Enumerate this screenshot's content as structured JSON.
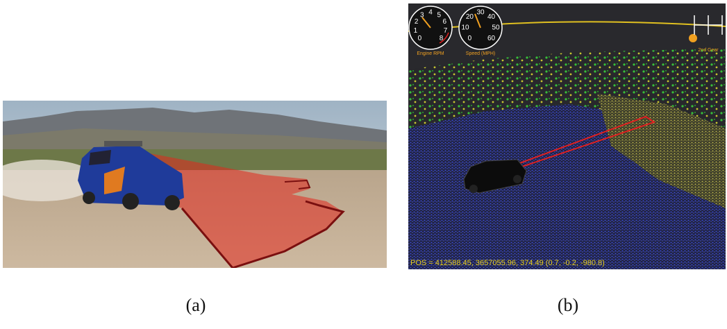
{
  "figure": {
    "panels": [
      {
        "label": "(a)"
      },
      {
        "label": "(b)",
        "gauges": [
          {
            "label": "Engine RPM",
            "ticks": [
              0,
              1,
              2,
              3,
              4,
              5,
              6,
              7,
              8
            ]
          },
          {
            "label": "Speed (MPH)",
            "ticks": [
              0,
              10,
              20,
              30,
              40,
              50,
              60
            ]
          }
        ],
        "gear": "2nd Gear",
        "position": "POS = 412588.45, 3657055.96, 374.49 (0.7, -0.2, -980.8)"
      }
    ]
  }
}
